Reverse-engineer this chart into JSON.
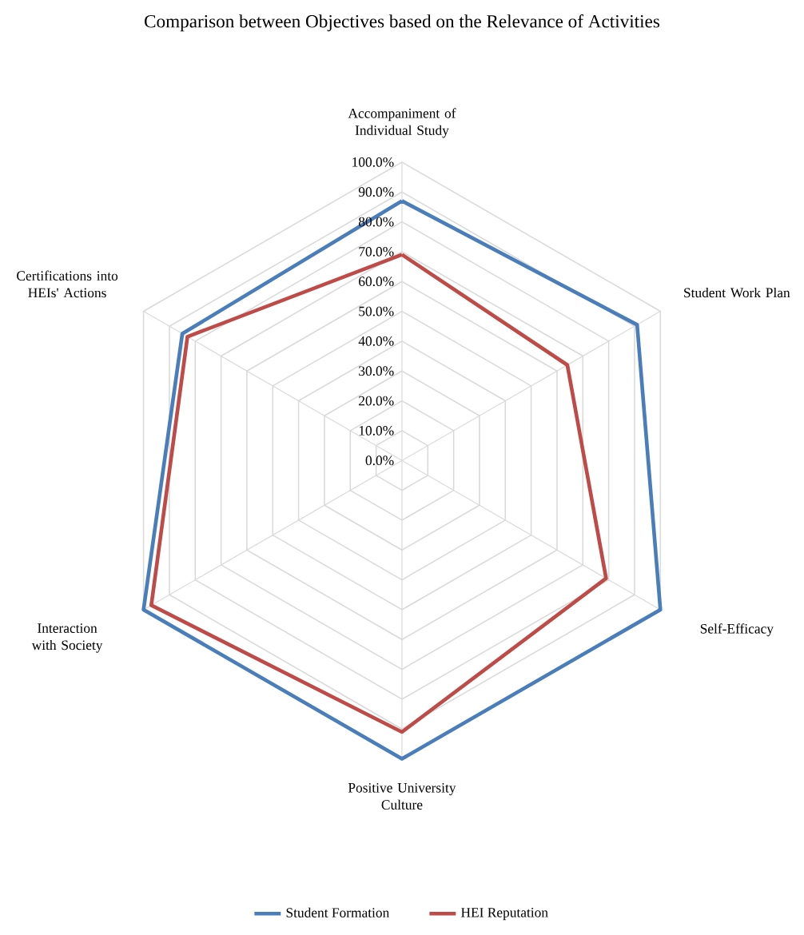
{
  "chart_data": {
    "type": "radar",
    "title": "Comparison between Objectives based on the Relevance of Activities",
    "categories": [
      "Accompaniment of Individual Study",
      "Student Work Plan",
      "Self-Efficacy",
      "Positive University Culture",
      "Interaction with Society",
      "Certifications into HEIs' Actions"
    ],
    "series": [
      {
        "name": "Student Formation",
        "color": "#4a7ebb",
        "values": [
          87,
          91,
          100,
          100,
          100,
          85
        ]
      },
      {
        "name": "HEI Reputation",
        "color": "#be4b48",
        "values": [
          69,
          64,
          79,
          91,
          97,
          83
        ]
      }
    ],
    "ylim": [
      0,
      100
    ],
    "yticks": [
      {
        "value": 0,
        "label": "0.0%"
      },
      {
        "value": 10,
        "label": "10.0%"
      },
      {
        "value": 20,
        "label": "20.0%"
      },
      {
        "value": 30,
        "label": "30.0%"
      },
      {
        "value": 40,
        "label": "40.0%"
      },
      {
        "value": 50,
        "label": "50.0%"
      },
      {
        "value": 60,
        "label": "60.0%"
      },
      {
        "value": 70,
        "label": "70.0%"
      },
      {
        "value": 80,
        "label": "80.0%"
      },
      {
        "value": 90,
        "label": "90.0%"
      },
      {
        "value": 100,
        "label": "100.0%"
      }
    ],
    "grid": true,
    "legend": "bottom",
    "marker": "none",
    "line_style": "solid"
  }
}
